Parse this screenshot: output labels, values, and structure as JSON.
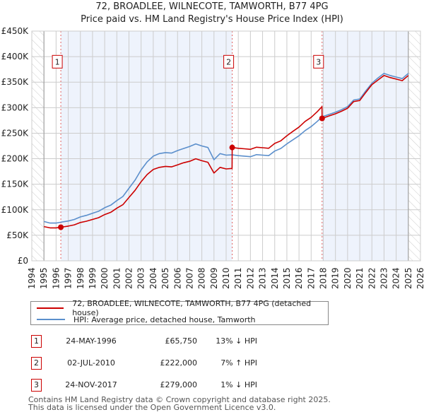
{
  "header": {
    "title": "72, BROADLEE, WILNECOTE, TAMWORTH, B77 4PG",
    "subtitle": "Price paid vs. HM Land Registry's House Price Index (HPI)"
  },
  "colors": {
    "price_line": "#cc0000",
    "hpi_line": "#5b8fcc",
    "shade": "#eef3fc",
    "grid": "#cccccc",
    "marker_border": "#cc0000"
  },
  "chart_data": {
    "type": "line",
    "title": "72, BROADLEE, WILNECOTE, TAMWORTH, B77 4PG — Price paid vs. HM Land Registry's House Price Index (HPI)",
    "xlabel": "",
    "ylabel": "",
    "xlim": [
      1994,
      2026
    ],
    "ylim": [
      0,
      450000
    ],
    "grid": true,
    "legend_position": "below",
    "x_ticks": [
      "1994",
      "1995",
      "1996",
      "1997",
      "1998",
      "1999",
      "2000",
      "2001",
      "2002",
      "2003",
      "2004",
      "2005",
      "2006",
      "2007",
      "2008",
      "2009",
      "2010",
      "2011",
      "2012",
      "2013",
      "2014",
      "2015",
      "2016",
      "2017",
      "2018",
      "2019",
      "2020",
      "2021",
      "2022",
      "2023",
      "2024",
      "2025",
      "2026"
    ],
    "y_ticks": [
      {
        "value": 0,
        "label": "£0"
      },
      {
        "value": 50000,
        "label": "£50K"
      },
      {
        "value": 100000,
        "label": "£100K"
      },
      {
        "value": 150000,
        "label": "£150K"
      },
      {
        "value": 200000,
        "label": "£200K"
      },
      {
        "value": 250000,
        "label": "£250K"
      },
      {
        "value": 300000,
        "label": "£300K"
      },
      {
        "value": 350000,
        "label": "£350K"
      },
      {
        "value": 400000,
        "label": "£400K"
      },
      {
        "value": 450000,
        "label": "£450K"
      }
    ],
    "hatched_ranges": [
      [
        1994,
        1995
      ],
      [
        2025,
        2026
      ]
    ],
    "shaded_ranges": [
      [
        1996.39,
        2010.5
      ],
      [
        2017.9,
        2025
      ]
    ],
    "series": [
      {
        "name": "HPI: Average price, detached house, Tamworth",
        "color": "#5b8fcc",
        "x": [
          1995.0,
          1995.5,
          1996.0,
          1996.39,
          1997.0,
          1997.5,
          1998.0,
          1998.5,
          1999.0,
          1999.5,
          2000.0,
          2000.5,
          2001.0,
          2001.5,
          2002.0,
          2002.5,
          2003.0,
          2003.5,
          2004.0,
          2004.5,
          2005.0,
          2005.5,
          2006.0,
          2006.5,
          2007.0,
          2007.5,
          2008.0,
          2008.5,
          2009.0,
          2009.5,
          2010.0,
          2010.5,
          2011.0,
          2011.5,
          2012.0,
          2012.5,
          2013.0,
          2013.5,
          2014.0,
          2014.5,
          2015.0,
          2015.5,
          2016.0,
          2016.5,
          2017.0,
          2017.5,
          2017.9,
          2018.5,
          2019.0,
          2019.5,
          2020.0,
          2020.5,
          2021.0,
          2021.5,
          2022.0,
          2022.5,
          2023.0,
          2023.5,
          2024.0,
          2024.5,
          2025.0
        ],
        "y": [
          77000,
          74000,
          74000,
          75600,
          78000,
          81000,
          86000,
          89000,
          93000,
          97000,
          104000,
          109000,
          118000,
          126000,
          142000,
          158000,
          178000,
          194000,
          205000,
          210000,
          212000,
          211000,
          216000,
          220000,
          224000,
          229000,
          225000,
          222000,
          198000,
          210000,
          207000,
          207500,
          206000,
          205000,
          204000,
          208000,
          207000,
          206000,
          215000,
          220000,
          229000,
          237000,
          245000,
          255000,
          263000,
          273000,
          282000,
          287000,
          291000,
          296000,
          302000,
          315000,
          317000,
          333000,
          348000,
          358000,
          367000,
          363000,
          360000,
          357000,
          367000
        ]
      },
      {
        "name": "72, BROADLEE, WILNECOTE, TAMWORTH, B77 4PG (detached house)",
        "color": "#cc0000",
        "x": [
          1995.0,
          1995.5,
          1996.0,
          1996.39,
          1997.0,
          1997.5,
          1998.0,
          1998.5,
          1999.0,
          1999.5,
          2000.0,
          2000.5,
          2001.0,
          2001.5,
          2002.0,
          2002.5,
          2003.0,
          2003.5,
          2004.0,
          2004.5,
          2005.0,
          2005.5,
          2006.0,
          2006.5,
          2007.0,
          2007.5,
          2008.0,
          2008.5,
          2009.0,
          2009.5,
          2010.0,
          2010.49,
          2010.5,
          2011.0,
          2011.5,
          2012.0,
          2012.5,
          2013.0,
          2013.5,
          2014.0,
          2014.5,
          2015.0,
          2015.5,
          2016.0,
          2016.5,
          2017.0,
          2017.5,
          2017.89,
          2017.9,
          2018.5,
          2019.0,
          2019.5,
          2020.0,
          2020.5,
          2021.0,
          2021.5,
          2022.0,
          2022.5,
          2023.0,
          2023.5,
          2024.0,
          2024.5,
          2025.0
        ],
        "y": [
          67000,
          64500,
          64500,
          65750,
          68000,
          70500,
          75000,
          77500,
          81000,
          84500,
          90500,
          95000,
          103000,
          110000,
          124000,
          138000,
          155000,
          169000,
          179000,
          183000,
          185000,
          184000,
          188000,
          192000,
          195000,
          200000,
          196000,
          193000,
          172000,
          183000,
          180000,
          181000,
          222000,
          220500,
          219400,
          218300,
          222500,
          221500,
          220400,
          230000,
          235000,
          245000,
          253600,
          262000,
          273000,
          281000,
          292000,
          302000,
          279000,
          284000,
          288000,
          293000,
          299000,
          312000,
          314000,
          330000,
          345000,
          354000,
          363000,
          359000,
          356000,
          353000,
          363000
        ]
      }
    ],
    "annotations": [
      {
        "label": "1",
        "x": 1996.39,
        "y": 65750
      },
      {
        "label": "2",
        "x": 2010.5,
        "y": 222000
      },
      {
        "label": "3",
        "x": 2017.9,
        "y": 279000
      }
    ],
    "marker_label_value": 390000
  },
  "legend": {
    "items": [
      {
        "label": "72, BROADLEE, WILNECOTE, TAMWORTH, B77 4PG (detached house)",
        "color": "#cc0000"
      },
      {
        "label": "HPI: Average price, detached house, Tamworth",
        "color": "#5b8fcc"
      }
    ]
  },
  "sales": [
    {
      "num": "1",
      "date": "24-MAY-1996",
      "price": "£65,750",
      "hpi": "13% ↓ HPI"
    },
    {
      "num": "2",
      "date": "02-JUL-2010",
      "price": "£222,000",
      "hpi": "7% ↑ HPI"
    },
    {
      "num": "3",
      "date": "24-NOV-2017",
      "price": "£279,000",
      "hpi": "1% ↓ HPI"
    }
  ],
  "footer": {
    "line1": "Contains HM Land Registry data © Crown copyright and database right 2025.",
    "line2": "This data is licensed under the Open Government Licence v3.0."
  }
}
